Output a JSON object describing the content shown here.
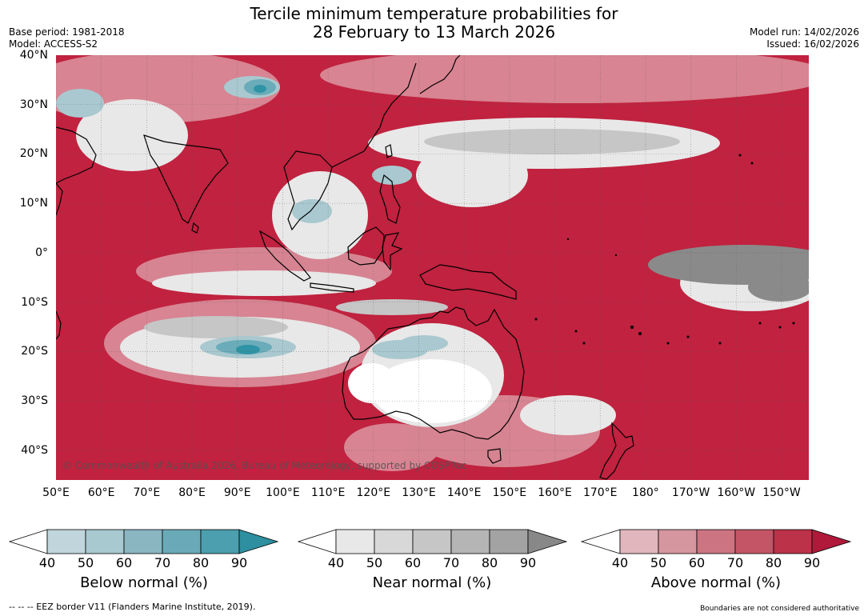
{
  "header": {
    "title_line1": "Tercile minimum temperature probabilities for",
    "title_line2": "28 February to 13 March 2026",
    "base_period": "Base period: 1981-2018",
    "model": "Model: ACCESS-S2",
    "model_run": "Model run: 14/02/2026",
    "issued": "Issued: 16/02/2026"
  },
  "map": {
    "lat_labels": [
      "40°N",
      "30°N",
      "20°N",
      "10°N",
      "0°",
      "10°S",
      "20°S",
      "30°S",
      "40°S"
    ],
    "lon_labels": [
      "50°E",
      "60°E",
      "70°E",
      "80°E",
      "90°E",
      "100°E",
      "110°E",
      "120°E",
      "130°E",
      "140°E",
      "150°E",
      "160°E",
      "170°E",
      "180°",
      "170°W",
      "160°W",
      "150°W"
    ],
    "copyright": "© Commonwealth of Australia 2026, Bureau of Meteorology, supported by COSPPac",
    "colors": {
      "above_base": "#c0223f",
      "above_strong": "#b3193a",
      "above_light": "#d98a97",
      "near_light": "#e8e8e8",
      "near_mid": "#c6c6c6",
      "near_dark": "#8a8a8a",
      "below_light": "#a9c8cf",
      "below_mid": "#6aacb9",
      "below_dark": "#2f94a5",
      "land_outline": "#000000"
    }
  },
  "colorbars": {
    "below": {
      "title": "Below normal (%)",
      "ticks": [
        "40",
        "50",
        "60",
        "70",
        "80",
        "90"
      ],
      "colors": [
        "#c0d6dc",
        "#a7c9cf",
        "#8ab6c2",
        "#6aaab8",
        "#4b9fae",
        "#2d8f9f"
      ]
    },
    "near": {
      "title": "Near normal (%)",
      "ticks": [
        "40",
        "50",
        "60",
        "70",
        "80",
        "90"
      ],
      "colors": [
        "#e8e8e8",
        "#d8d8d8",
        "#c6c6c6",
        "#b5b5b5",
        "#a3a3a3",
        "#888888"
      ]
    },
    "above": {
      "title": "Above normal (%)",
      "ticks": [
        "40",
        "50",
        "60",
        "70",
        "80",
        "90"
      ],
      "colors": [
        "#e2b6bd",
        "#d6969f",
        "#cc7481",
        "#c45566",
        "#bb3249",
        "#b0193a"
      ]
    }
  },
  "footer": {
    "eez_note": "--  --  -- EEZ border V11 (Flanders Marine Institute, 2019).",
    "disclaimer": "Boundaries are not considered authoritative"
  }
}
